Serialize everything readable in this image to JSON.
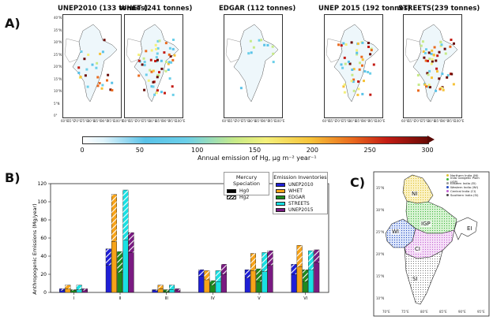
{
  "panel_a": {
    "letter": "A)",
    "maps": [
      {
        "title": "UNEP2010 (133 tonnes)"
      },
      {
        "title": "WHET (241 tonnes)"
      },
      {
        "title": "EDGAR (112 tonnes)"
      },
      {
        "title": "UNEP 2015 (192 tonnes)"
      },
      {
        "title": "STREETS(239 tonnes)"
      }
    ],
    "lat_ticks": [
      "40°N",
      "35°N",
      "30°N",
      "25°N",
      "20°N",
      "15°N",
      "10°N",
      "5°N",
      "0°"
    ],
    "lon_ticks": [
      "60°E",
      "65°E",
      "70°E",
      "75°E",
      "80°E",
      "85°E",
      "90°E",
      "95°E",
      "100°E"
    ],
    "colorbar": {
      "ticks": [
        "0",
        "50",
        "100",
        "150",
        "200",
        "250",
        "300"
      ],
      "label": "Annual emission of Hg,  μg m⁻² year⁻¹",
      "colors": {
        "low": "#ffffff",
        "mid": "#f4f07a",
        "high": "#6a0b06"
      }
    }
  },
  "panel_b": {
    "letter": "B)",
    "ylabel": "Anthropogenic Emissions (Mg/year)",
    "yticks": [
      "0",
      "20",
      "40",
      "60",
      "80",
      "100",
      "120"
    ],
    "xticks": [
      "I",
      "II",
      "III",
      "IV",
      "V",
      "VI"
    ],
    "legend_speciation": {
      "title": "Mercury Speciation",
      "items": [
        "Hg0",
        "Hg2"
      ]
    },
    "legend_inventories": {
      "title": "Emission Inventories",
      "items": [
        "UNEP2010",
        "WHET",
        "EDGAR",
        "STREETS",
        "UNEP2015"
      ]
    }
  },
  "chart_data": {
    "type": "bar",
    "stacked": true,
    "categories": [
      "I",
      "II",
      "III",
      "IV",
      "V",
      "VI"
    ],
    "ylim": [
      0,
      120
    ],
    "ylabel": "Anthropogenic Emissions (Mg/year)",
    "series": [
      {
        "name": "UNEP2010",
        "color": "#1f1fd6",
        "hg0": [
          2,
          30,
          2,
          18,
          16,
          20
        ],
        "total": [
          4,
          48,
          3,
          25,
          25,
          31
        ]
      },
      {
        "name": "WHET",
        "color": "#f7a318",
        "hg0": [
          4,
          56,
          4,
          14,
          24,
          28
        ],
        "total": [
          8,
          108,
          8,
          24,
          43,
          52
        ]
      },
      {
        "name": "EDGAR",
        "color": "#1e8a1e",
        "hg0": [
          2,
          22,
          1,
          8,
          12,
          12
        ],
        "total": [
          3,
          45,
          3,
          13,
          26,
          25
        ]
      },
      {
        "name": "STREETS",
        "color": "#19e0e3",
        "hg0": [
          3,
          58,
          3,
          12,
          23,
          25
        ],
        "total": [
          8,
          113,
          8,
          24,
          44,
          46
        ]
      },
      {
        "name": "UNEP2015",
        "color": "#7a1a82",
        "hg0": [
          2,
          44,
          2,
          20,
          30,
          33
        ],
        "total": [
          4,
          66,
          4,
          31,
          46,
          47
        ]
      }
    ]
  },
  "panel_c": {
    "letter": "C)",
    "regions": [
      {
        "code": "NI",
        "color": "#f6e07a"
      },
      {
        "code": "IGP",
        "color": "#8fe08f"
      },
      {
        "code": "EI",
        "color": "#ffffff"
      },
      {
        "code": "WI",
        "color": "#4a7ae0"
      },
      {
        "code": "CI",
        "color": "#e7a7ee"
      },
      {
        "code": "SI",
        "color": "#ffffff"
      }
    ],
    "legend": [
      "Northern India (NI)",
      "Indo Gangetic Plain (IGP)",
      "Eastern India (EI)",
      "Western India (WI)",
      "Central India (CI)",
      "Southern India (SI)"
    ],
    "lat_ticks": [
      "35°N",
      "30°N",
      "25°N",
      "20°N",
      "15°N",
      "10°N"
    ],
    "lon_ticks": [
      "70°E",
      "75°E",
      "80°E",
      "85°E",
      "90°E",
      "95°E"
    ]
  }
}
